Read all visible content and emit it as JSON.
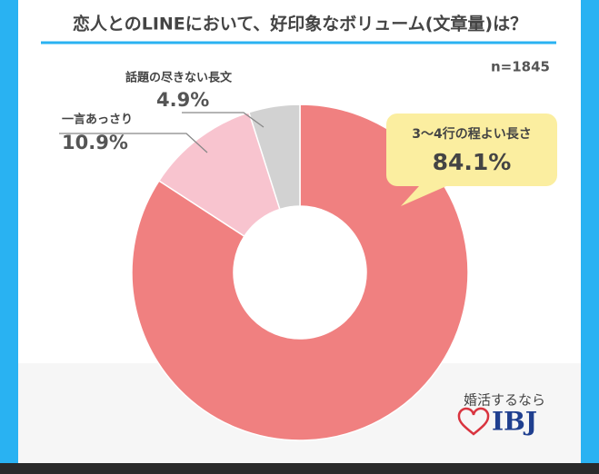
{
  "chart_data": {
    "type": "donut",
    "title": "恋人とのLINEにおいて、好印象なボリューム(文章量)は？",
    "annotation": "n=1845",
    "categories": [
      "3〜4行の程よい長さ",
      "一言あっさり",
      "話題の尽きない長文"
    ],
    "values": [
      84.1,
      10.9,
      4.9
    ],
    "value_labels": [
      "84.1%",
      "10.9%",
      "4.9%"
    ],
    "colors": [
      "#f08080",
      "#f8c4cf",
      "#d2d2d2"
    ]
  },
  "logo": {
    "tagline": "婚活するなら",
    "brand": "IBJ"
  }
}
